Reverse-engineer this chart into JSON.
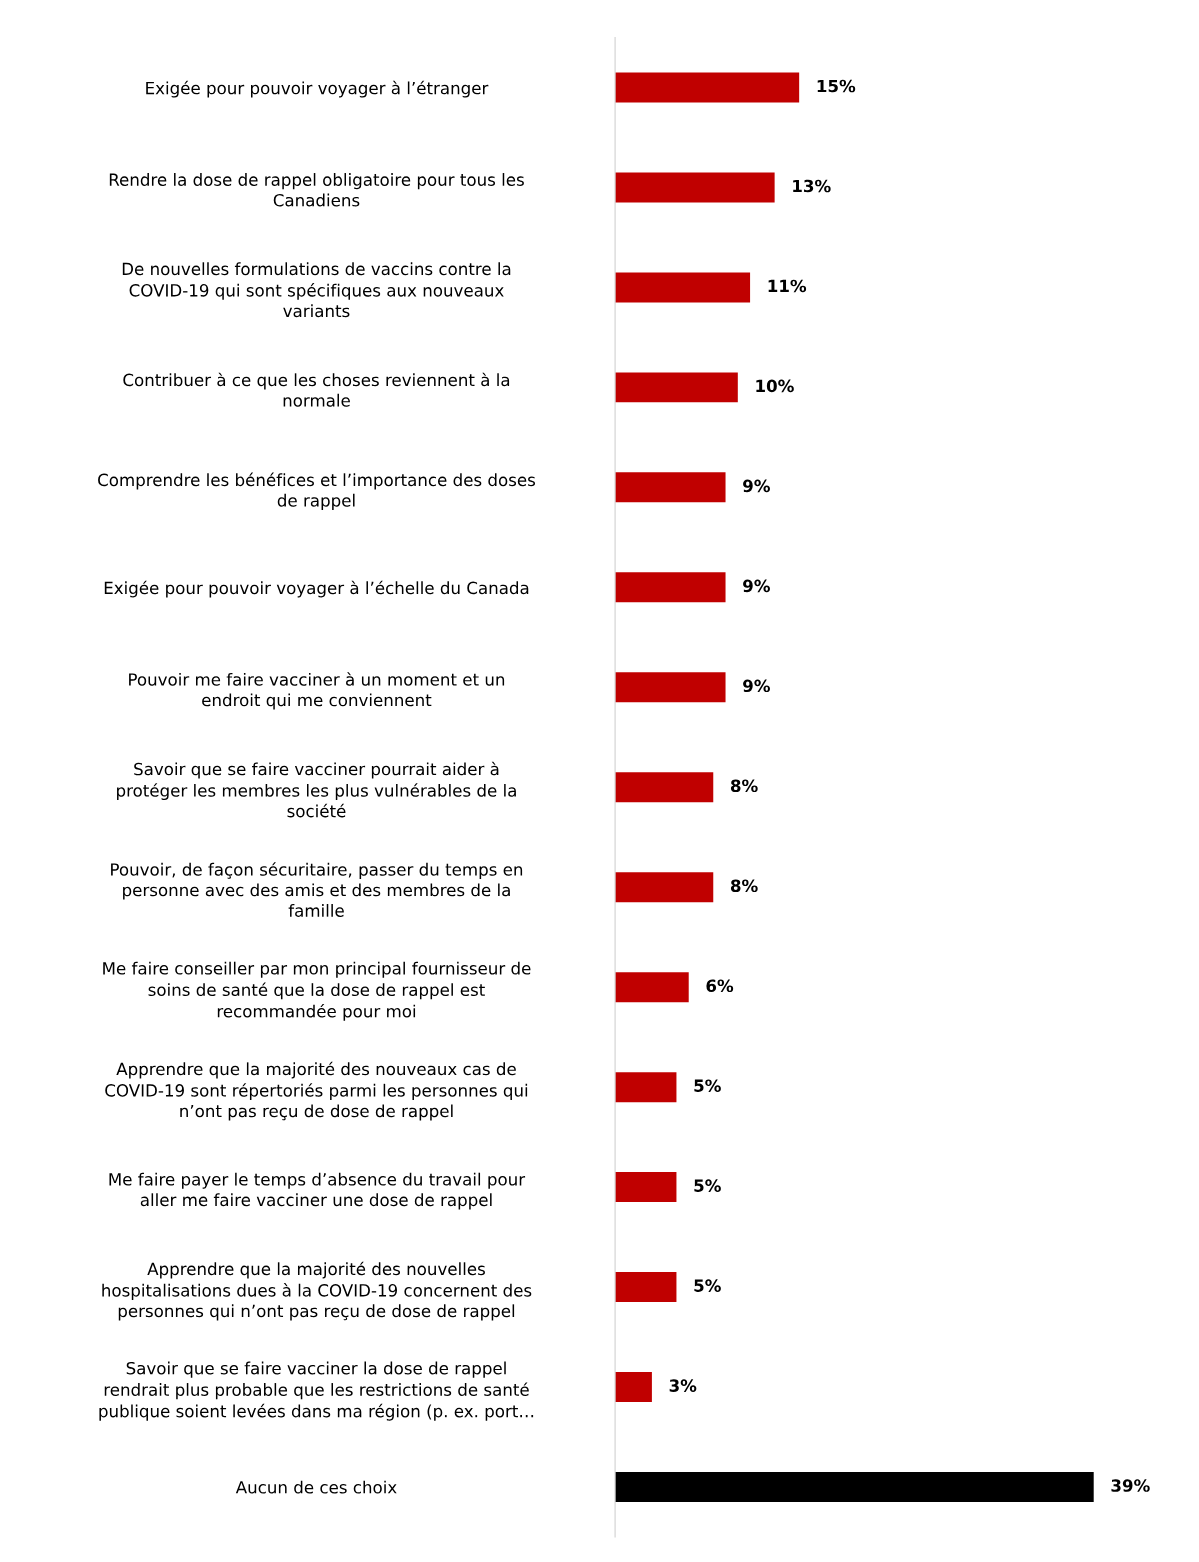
{
  "chart_data": {
    "type": "bar",
    "orientation": "horizontal",
    "data_labels": true,
    "categories": [
      "Exigée pour pouvoir voyager à l’étranger",
      "Rendre la dose de rappel obligatoire pour tous les\nCanadiens",
      "De nouvelles formulations de vaccins contre la\nCOVID-19 qui sont spécifiques aux nouveaux\nvariants",
      "Contribuer à ce que les choses reviennent à la\nnormale",
      "Comprendre les bénéfices et l’importance des doses\nde rappel",
      "Exigée pour pouvoir voyager à l’échelle du Canada",
      "Pouvoir me faire vacciner à un moment et un\nendroit qui me conviennent",
      "Savoir que se faire vacciner pourrait aider à\nprotéger les membres les plus vulnérables de la\nsociété",
      "Pouvoir, de façon sécuritaire, passer du temps en\npersonne avec des amis et des membres de la\nfamille",
      "Me faire conseiller par mon principal fournisseur de\nsoins de santé que la dose de rappel est\nrecommandée pour moi",
      "Apprendre que la majorité des nouveaux cas de\nCOVID-19 sont répertoriés parmi les personnes qui\nn’ont pas reçu de dose de rappel",
      "Me faire payer le temps d’absence du travail pour\naller me faire vacciner une dose de rappel",
      "Apprendre que la majorité des nouvelles\nhospitalisations dues à la COVID-19 concernent des\npersonnes qui n’ont pas reçu de dose de rappel",
      "Savoir que se faire vacciner la dose de rappel\nrendrait plus probable que les restrictions de santé\npublique soient levées dans ma région (p. ex. port…",
      "Aucun de ces choix"
    ],
    "values": [
      15,
      13,
      11,
      10,
      9,
      9,
      9,
      8,
      8,
      6,
      5,
      5,
      5,
      3,
      39
    ],
    "value_labels": [
      "15%",
      "13%",
      "11%",
      "10%",
      "9%",
      "9%",
      "9%",
      "8%",
      "8%",
      "6%",
      "5%",
      "5%",
      "5%",
      "3%",
      "39%"
    ],
    "colors": [
      "#c00000",
      "#c00000",
      "#c00000",
      "#c00000",
      "#c00000",
      "#c00000",
      "#c00000",
      "#c00000",
      "#c00000",
      "#c00000",
      "#c00000",
      "#c00000",
      "#c00000",
      "#c00000",
      "#000000"
    ]
  }
}
